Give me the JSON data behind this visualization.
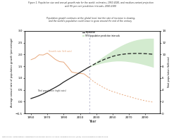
{
  "title": "Figure 1. Population size and annual growth rate for the world: estimates, 1950-2020, and medium-variant projection\nwith 95 per cent prediction intervals, 2020-2100",
  "subtitle": "Population growth continues at the global level, but the rate of increase is slowing,\nand the world's population could cease to grow around the end of the century",
  "xlabel": "Year",
  "ylabel_left": "Average annual rate of population growth (percentage)",
  "ylabel_right": "Total population (billions)",
  "years_hist": [
    1950,
    1955,
    1960,
    1965,
    1970,
    1975,
    1980,
    1985,
    1990,
    1995,
    2000,
    2005,
    2010,
    2015,
    2020
  ],
  "growth_hist": [
    1.78,
    1.85,
    1.99,
    1.98,
    2.06,
    1.93,
    1.79,
    1.7,
    1.68,
    1.48,
    1.26,
    1.22,
    1.2,
    1.18,
    1.05
  ],
  "pop_hist": [
    2.54,
    2.77,
    3.03,
    3.34,
    3.7,
    4.08,
    4.45,
    4.85,
    5.33,
    5.74,
    6.14,
    6.54,
    6.96,
    7.38,
    7.79
  ],
  "years_proj": [
    2020,
    2025,
    2030,
    2035,
    2040,
    2045,
    2050,
    2055,
    2060,
    2065,
    2070,
    2075,
    2080,
    2085,
    2090,
    2095,
    2100
  ],
  "growth_proj_med": [
    1.05,
    0.9,
    0.78,
    0.68,
    0.58,
    0.5,
    0.43,
    0.38,
    0.32,
    0.27,
    0.22,
    0.17,
    0.12,
    0.08,
    0.04,
    0.01,
    -0.02
  ],
  "pop_proj_med": [
    7.79,
    8.18,
    8.55,
    8.88,
    9.19,
    9.44,
    9.69,
    9.87,
    10.0,
    10.09,
    10.15,
    10.18,
    10.19,
    10.18,
    10.15,
    10.1,
    10.04
  ],
  "pop_proj_low": [
    7.79,
    8.05,
    8.28,
    8.48,
    8.64,
    8.76,
    8.85,
    8.9,
    8.9,
    8.86,
    8.78,
    8.68,
    8.55,
    8.4,
    8.22,
    8.03,
    7.82
  ],
  "pop_proj_high": [
    7.79,
    8.32,
    8.84,
    9.32,
    9.8,
    10.25,
    10.7,
    11.1,
    11.48,
    11.82,
    12.1,
    12.34,
    12.52,
    12.64,
    12.72,
    12.76,
    12.75
  ],
  "divider_year": 2022,
  "ylim_left": [
    -0.5,
    3.0
  ],
  "ylim_right": [
    0,
    14
  ],
  "yticks_left": [
    -0.5,
    0.0,
    0.5,
    1.0,
    1.5,
    2.0,
    2.5,
    3.0
  ],
  "yticks_right": [
    0,
    2,
    4,
    6,
    8,
    10,
    12,
    14
  ],
  "xticks": [
    1950,
    1970,
    1990,
    2010,
    2030,
    2050,
    2070,
    2090
  ],
  "color_growth": "#e8a87c",
  "color_pop": "#222222",
  "color_shade": "#a8d8a0",
  "color_divider": "#b0b0c8",
  "bg_color": "#ffffff",
  "source": "Data source: United Nations, Department of Economic and Social Affairs, Population Division (2019). World Population Prospects 2019.",
  "legend_label_pop": "Population",
  "legend_label_interval": "95% population prediction intervals",
  "annotation_growth": "Growth rate (left axis)",
  "annotation_pop": "Total population (right axis)"
}
